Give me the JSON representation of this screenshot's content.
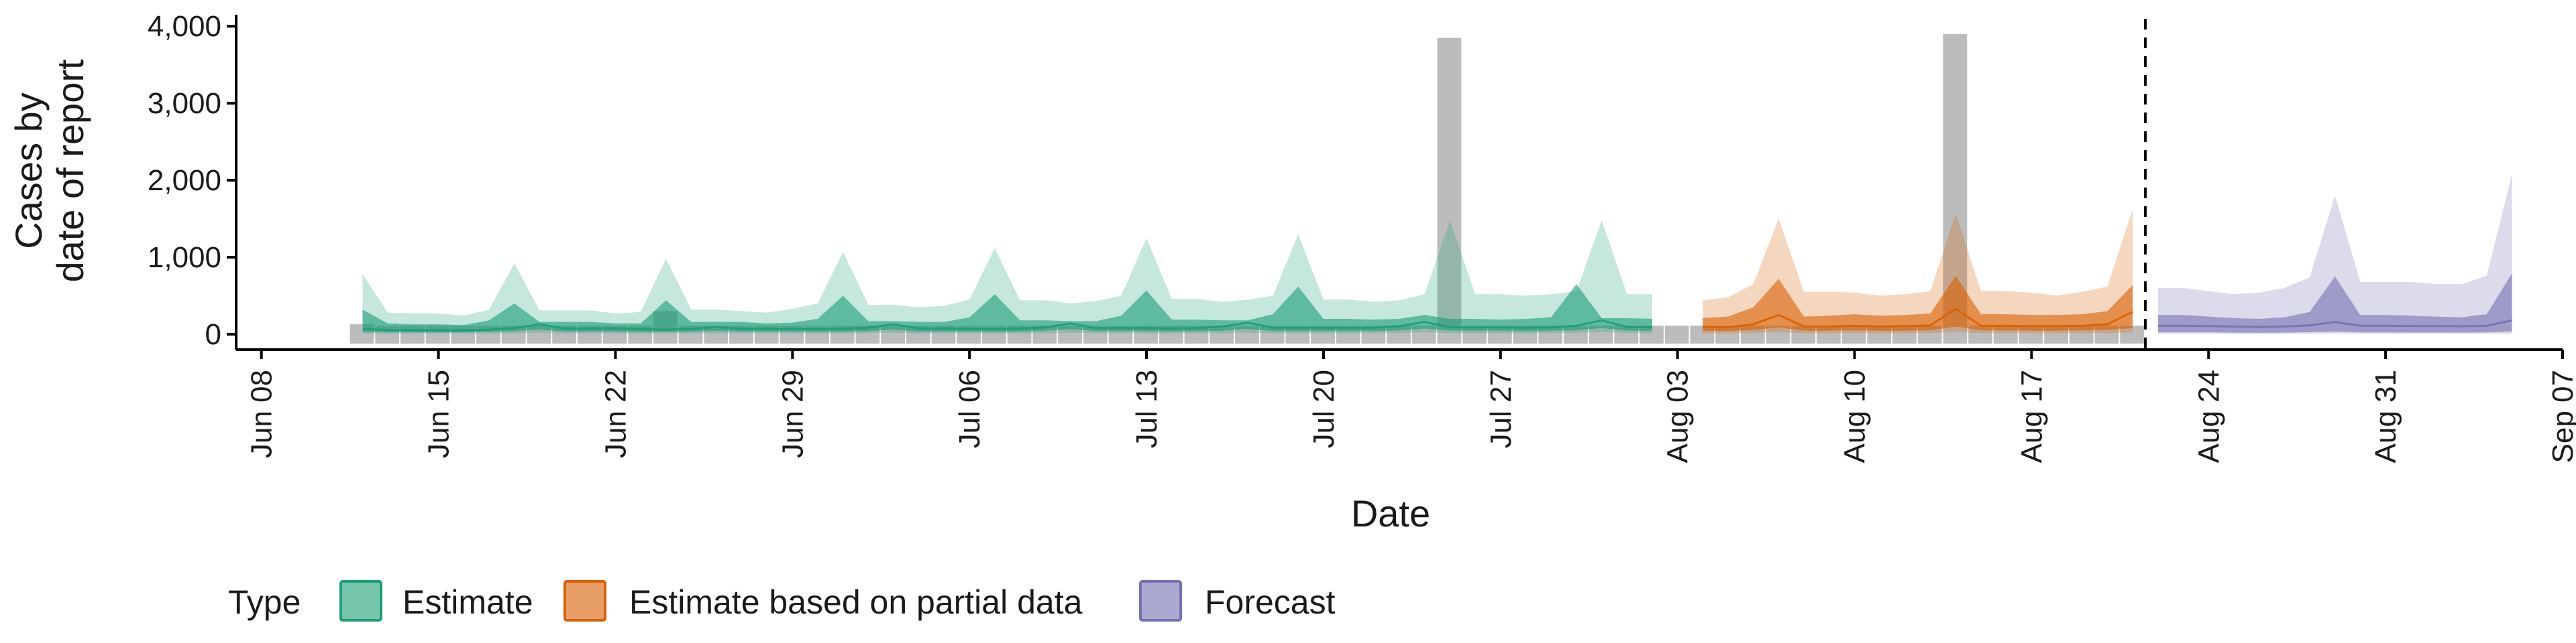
{
  "chart_data": {
    "type": "area",
    "title": "",
    "xlabel": "Date",
    "ylabel_lines": [
      "Cases by",
      "date of report"
    ],
    "y_ticks": [
      0,
      1000,
      2000,
      3000,
      4000
    ],
    "y_tick_labels": [
      "0",
      "1,000",
      "2,000",
      "3,000",
      "4,000"
    ],
    "ylim": [
      -200,
      4150
    ],
    "x_ticks": [
      "2020-06-08",
      "2020-06-15",
      "2020-06-22",
      "2020-06-29",
      "2020-07-06",
      "2020-07-13",
      "2020-07-20",
      "2020-07-27",
      "2020-08-03",
      "2020-08-10",
      "2020-08-17",
      "2020-08-24",
      "2020-08-31",
      "2020-09-07"
    ],
    "x_tick_labels": [
      "Jun 08",
      "Jun 15",
      "Jun 22",
      "Jun 29",
      "Jul 06",
      "Jul 13",
      "Jul 20",
      "Jul 27",
      "Aug 03",
      "Aug 10",
      "Aug 17",
      "Aug 24",
      "Aug 31",
      "Sep 07"
    ],
    "xlim": [
      "2020-06-07",
      "2020-09-07"
    ],
    "forecast_cutoff_date": "2020-08-21",
    "legend": {
      "title": "Type",
      "position": "bottom",
      "items": [
        {
          "label": "Estimate",
          "color": "#1b9e77"
        },
        {
          "label": "Estimate based on partial data",
          "color": "#d95f02"
        },
        {
          "label": "Forecast",
          "color": "#7570b3"
        }
      ]
    },
    "colors": {
      "Estimate": "#1b9e77",
      "Estimate based on partial data": "#d95f02",
      "Forecast": "#7570b3",
      "reported": "#a6a6a6",
      "axis": "#000000"
    },
    "reported_cases": {
      "start_date": "2020-06-12",
      "values": [
        130,
        110,
        110,
        110,
        110,
        110,
        110,
        110,
        110,
        110,
        110,
        110,
        300,
        110,
        110,
        110,
        110,
        110,
        110,
        110,
        110,
        110,
        110,
        110,
        110,
        110,
        110,
        110,
        110,
        110,
        110,
        110,
        110,
        110,
        110,
        110,
        110,
        110,
        110,
        110,
        110,
        110,
        110,
        3850,
        110,
        110,
        110,
        110,
        110,
        110,
        110,
        110,
        110,
        110,
        110,
        110,
        110,
        110,
        110,
        110,
        110,
        110,
        110,
        3900,
        110,
        110,
        110,
        110,
        110,
        110,
        110
      ]
    },
    "series": [
      {
        "name": "Estimate",
        "start_date": "2020-06-12",
        "median": [
          70,
          55,
          50,
          50,
          50,
          60,
          80,
          130,
          75,
          75,
          75,
          65,
          60,
          70,
          95,
          70,
          70,
          70,
          65,
          70,
          85,
          130,
          75,
          75,
          70,
          65,
          75,
          90,
          140,
          80,
          80,
          80,
          75,
          80,
          100,
          150,
          85,
          85,
          85,
          80,
          85,
          105,
          160,
          90,
          90,
          90,
          85,
          90,
          110,
          180,
          95,
          95
        ],
        "inner_lower": [
          30,
          25,
          25,
          25,
          25,
          30,
          40,
          60,
          35,
          35,
          35,
          30,
          30,
          35,
          45,
          35,
          35,
          35,
          30,
          35,
          40,
          60,
          35,
          35,
          35,
          30,
          35,
          45,
          65,
          40,
          40,
          40,
          35,
          40,
          45,
          70,
          40,
          40,
          40,
          40,
          40,
          50,
          75,
          45,
          45,
          45,
          40,
          45,
          50,
          80,
          45,
          45
        ],
        "inner_upper": [
          320,
          140,
          130,
          130,
          120,
          180,
          400,
          160,
          160,
          160,
          140,
          140,
          440,
          160,
          160,
          160,
          140,
          150,
          200,
          500,
          170,
          170,
          160,
          160,
          220,
          520,
          180,
          180,
          170,
          170,
          240,
          570,
          190,
          190,
          180,
          180,
          260,
          620,
          200,
          200,
          190,
          200,
          250,
          200,
          200,
          190,
          200,
          220,
          650,
          210,
          210,
          200
        ],
        "outer_lower": [
          10,
          8,
          8,
          8,
          8,
          10,
          15,
          20,
          12,
          12,
          12,
          10,
          10,
          12,
          15,
          12,
          12,
          12,
          10,
          12,
          15,
          20,
          12,
          12,
          12,
          10,
          12,
          15,
          20,
          14,
          14,
          14,
          12,
          14,
          16,
          22,
          14,
          14,
          14,
          14,
          14,
          18,
          25,
          16,
          16,
          16,
          14,
          16,
          18,
          28,
          16,
          16
        ],
        "outer_upper": [
          780,
          280,
          270,
          270,
          240,
          320,
          920,
          310,
          310,
          310,
          270,
          290,
          980,
          320,
          320,
          300,
          280,
          330,
          400,
          1070,
          380,
          380,
          350,
          370,
          450,
          1120,
          440,
          440,
          400,
          430,
          500,
          1250,
          460,
          460,
          420,
          450,
          500,
          1300,
          450,
          450,
          420,
          440,
          520,
          1480,
          520,
          520,
          500,
          520,
          560,
          1480,
          520,
          520
        ]
      },
      {
        "name": "Estimate based on partial data",
        "start_date": "2020-08-04",
        "median": [
          95,
          90,
          130,
          250,
          100,
          100,
          110,
          100,
          105,
          115,
          330,
          110,
          110,
          105,
          105,
          110,
          130,
          290
        ],
        "inner_lower": [
          45,
          40,
          55,
          90,
          45,
          45,
          50,
          45,
          45,
          50,
          100,
          50,
          50,
          45,
          45,
          50,
          55,
          80
        ],
        "inner_upper": [
          210,
          230,
          350,
          720,
          230,
          240,
          260,
          240,
          250,
          270,
          760,
          260,
          260,
          250,
          250,
          260,
          300,
          640
        ],
        "outer_lower": [
          15,
          12,
          18,
          25,
          14,
          14,
          15,
          14,
          14,
          15,
          30,
          15,
          15,
          14,
          14,
          15,
          16,
          22
        ],
        "outer_upper": [
          440,
          480,
          650,
          1500,
          550,
          550,
          540,
          500,
          520,
          560,
          1570,
          560,
          560,
          540,
          500,
          550,
          620,
          1620
        ]
      },
      {
        "name": "Forecast",
        "start_date": "2020-08-22",
        "median": [
          110,
          110,
          105,
          100,
          95,
          100,
          115,
          160,
          110,
          110,
          108,
          106,
          104,
          110,
          180
        ],
        "inner_lower": [
          25,
          25,
          25,
          22,
          20,
          22,
          26,
          35,
          24,
          24,
          23,
          23,
          22,
          24,
          38
        ],
        "inner_upper": [
          250,
          250,
          230,
          210,
          200,
          220,
          290,
          750,
          250,
          250,
          240,
          230,
          220,
          260,
          790
        ],
        "outer_lower": [
          5,
          5,
          5,
          4,
          4,
          4,
          5,
          8,
          5,
          5,
          5,
          5,
          5,
          5,
          8
        ],
        "outer_upper": [
          600,
          600,
          560,
          520,
          540,
          600,
          740,
          1800,
          680,
          680,
          680,
          650,
          650,
          760,
          2080
        ]
      }
    ]
  }
}
